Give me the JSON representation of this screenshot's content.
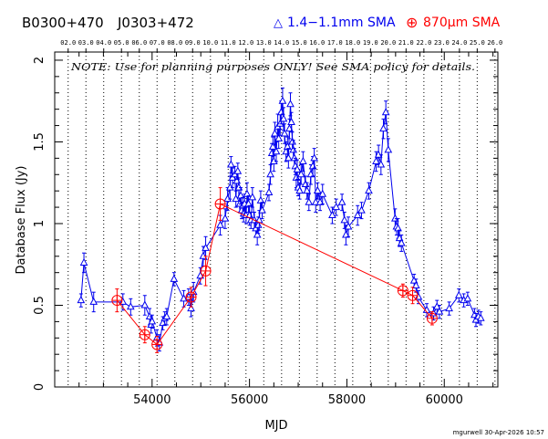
{
  "chart_data": {
    "type": "scatter",
    "title_left": "B0300+470",
    "title_mid": "J0303+472",
    "xlabel": "MJD",
    "ylabel": "Database Flux (Jy)",
    "xlim": [
      52000,
      61100
    ],
    "ylim": [
      0,
      2.05
    ],
    "x_ticks": [
      54000,
      56000,
      58000,
      60000
    ],
    "y_ticks": [
      0,
      0.5,
      1,
      1.5,
      2
    ],
    "y_tick_labels": [
      "0",
      "0.5",
      "1",
      "1.5",
      "2"
    ],
    "top_axis_labels": [
      "02.0",
      "03.0",
      "04.0",
      "05.0",
      "06.0",
      "07.0",
      "08.0",
      "09.0",
      "10.0",
      "11.0",
      "12.0",
      "13.0",
      "14.0",
      "15.0",
      "16.0",
      "17.0",
      "18.0",
      "19.0",
      "20.0",
      "21.0",
      "22.0",
      "23.0",
      "24.0",
      "25.0",
      "26.0"
    ],
    "year_ticks_mjd": [
      52276,
      52641,
      53006,
      53371,
      53737,
      54102,
      54467,
      54832,
      55198,
      55563,
      55928,
      56293,
      56659,
      57024,
      57389,
      57754,
      58120,
      58485,
      58850,
      59215,
      59581,
      59946,
      60311,
      60676,
      61041
    ],
    "note": "NOTE: Use for planning purposes ONLY! See SMA policy for details.",
    "footer": "mgurwell 30-Apr-2026 10:57",
    "grid": "vertical dotted lines at each year",
    "legend": "top",
    "series": [
      {
        "name": "1.4−1.1mm SMA",
        "marker_symbol": "△",
        "color": "#0000ee",
        "marker": "triangle",
        "points": [
          [
            52540,
            0.53,
            0.04
          ],
          [
            52600,
            0.76,
            0.06
          ],
          [
            52800,
            0.52,
            0.06
          ],
          [
            53400,
            0.52,
            0.05
          ],
          [
            53560,
            0.49,
            0.05
          ],
          [
            53850,
            0.5,
            0.06
          ],
          [
            53950,
            0.43,
            0.05
          ],
          [
            53980,
            0.38,
            0.05
          ],
          [
            54000,
            0.4,
            0.04
          ],
          [
            54100,
            0.3,
            0.05
          ],
          [
            54150,
            0.27,
            0.05
          ],
          [
            54220,
            0.39,
            0.04
          ],
          [
            54260,
            0.42,
            0.04
          ],
          [
            54300,
            0.43,
            0.05
          ],
          [
            54450,
            0.66,
            0.04
          ],
          [
            54650,
            0.54,
            0.05
          ],
          [
            54750,
            0.55,
            0.05
          ],
          [
            54800,
            0.48,
            0.05
          ],
          [
            54850,
            0.58,
            0.06
          ],
          [
            54990,
            0.68,
            0.05
          ],
          [
            55050,
            0.8,
            0.06
          ],
          [
            55100,
            0.85,
            0.07
          ],
          [
            55400,
            0.99,
            0.06
          ],
          [
            55500,
            1.03,
            0.06
          ],
          [
            55550,
            1.15,
            0.07
          ],
          [
            55600,
            1.22,
            0.07
          ],
          [
            55620,
            1.36,
            0.05
          ],
          [
            55650,
            1.28,
            0.06
          ],
          [
            55700,
            1.3,
            0.05
          ],
          [
            55720,
            1.15,
            0.05
          ],
          [
            55740,
            1.26,
            0.05
          ],
          [
            55760,
            1.32,
            0.05
          ],
          [
            55780,
            1.22,
            0.06
          ],
          [
            55800,
            1.12,
            0.05
          ],
          [
            55820,
            1.17,
            0.05
          ],
          [
            55840,
            1.08,
            0.05
          ],
          [
            55860,
            1.11,
            0.05
          ],
          [
            55880,
            1.06,
            0.05
          ],
          [
            55900,
            1.12,
            0.06
          ],
          [
            55930,
            1.05,
            0.05
          ],
          [
            55950,
            1.18,
            0.07
          ],
          [
            55980,
            1.12,
            0.05
          ],
          [
            56000,
            1.05,
            0.06
          ],
          [
            56030,
            1.02,
            0.05
          ],
          [
            56060,
            1.16,
            0.06
          ],
          [
            56100,
            1.02,
            0.05
          ],
          [
            56130,
            0.97,
            0.05
          ],
          [
            56160,
            0.93,
            0.06
          ],
          [
            56180,
            0.99,
            0.05
          ],
          [
            56200,
            1.02,
            0.06
          ],
          [
            56230,
            1.14,
            0.06
          ],
          [
            56260,
            1.08,
            0.05
          ],
          [
            56400,
            1.19,
            0.05
          ],
          [
            56430,
            1.3,
            0.06
          ],
          [
            56460,
            1.43,
            0.06
          ],
          [
            56480,
            1.47,
            0.06
          ],
          [
            56500,
            1.38,
            0.06
          ],
          [
            56520,
            1.55,
            0.07
          ],
          [
            56550,
            1.44,
            0.06
          ],
          [
            56580,
            1.59,
            0.08
          ],
          [
            56600,
            1.52,
            0.06
          ],
          [
            56630,
            1.61,
            0.07
          ],
          [
            56650,
            1.68,
            0.07
          ],
          [
            56680,
            1.75,
            0.08
          ],
          [
            56700,
            1.64,
            0.07
          ],
          [
            56720,
            1.55,
            0.06
          ],
          [
            56750,
            1.44,
            0.06
          ],
          [
            56780,
            1.47,
            0.06
          ],
          [
            56800,
            1.4,
            0.06
          ],
          [
            56820,
            1.58,
            0.06
          ],
          [
            56840,
            1.73,
            0.07
          ],
          [
            56860,
            1.62,
            0.06
          ],
          [
            56880,
            1.5,
            0.06
          ],
          [
            56900,
            1.45,
            0.06
          ],
          [
            56920,
            1.4,
            0.06
          ],
          [
            56940,
            1.35,
            0.05
          ],
          [
            56960,
            1.28,
            0.06
          ],
          [
            56980,
            1.33,
            0.06
          ],
          [
            57000,
            1.22,
            0.05
          ],
          [
            57030,
            1.2,
            0.05
          ],
          [
            57060,
            1.3,
            0.06
          ],
          [
            57100,
            1.38,
            0.06
          ],
          [
            57150,
            1.24,
            0.05
          ],
          [
            57180,
            1.2,
            0.05
          ],
          [
            57220,
            1.13,
            0.05
          ],
          [
            57260,
            1.3,
            0.06
          ],
          [
            57300,
            1.35,
            0.06
          ],
          [
            57330,
            1.4,
            0.06
          ],
          [
            57360,
            1.13,
            0.06
          ],
          [
            57400,
            1.2,
            0.05
          ],
          [
            57450,
            1.13,
            0.05
          ],
          [
            57500,
            1.18,
            0.06
          ],
          [
            57700,
            1.05,
            0.05
          ],
          [
            57780,
            1.1,
            0.05
          ],
          [
            57900,
            1.13,
            0.05
          ],
          [
            57950,
            1.02,
            0.05
          ],
          [
            57980,
            0.93,
            0.06
          ],
          [
            58030,
            0.98,
            0.06
          ],
          [
            58220,
            1.05,
            0.06
          ],
          [
            58300,
            1.08,
            0.05
          ],
          [
            58450,
            1.2,
            0.05
          ],
          [
            58600,
            1.38,
            0.06
          ],
          [
            58650,
            1.42,
            0.06
          ],
          [
            58700,
            1.36,
            0.06
          ],
          [
            58750,
            1.58,
            0.06
          ],
          [
            58800,
            1.68,
            0.07
          ],
          [
            58850,
            1.45,
            0.07
          ],
          [
            58990,
            1.03,
            0.06
          ],
          [
            59020,
            0.98,
            0.05
          ],
          [
            59050,
            0.97,
            0.06
          ],
          [
            59080,
            0.91,
            0.05
          ],
          [
            59120,
            0.88,
            0.05
          ],
          [
            59380,
            0.65,
            0.04
          ],
          [
            59420,
            0.62,
            0.04
          ],
          [
            59470,
            0.55,
            0.04
          ],
          [
            59640,
            0.47,
            0.04
          ],
          [
            59780,
            0.45,
            0.04
          ],
          [
            59850,
            0.49,
            0.04
          ],
          [
            59900,
            0.46,
            0.04
          ],
          [
            60100,
            0.48,
            0.04
          ],
          [
            60300,
            0.56,
            0.04
          ],
          [
            60400,
            0.53,
            0.04
          ],
          [
            60480,
            0.54,
            0.04
          ],
          [
            60620,
            0.44,
            0.04
          ],
          [
            60650,
            0.41,
            0.04
          ],
          [
            60700,
            0.43,
            0.04
          ],
          [
            60750,
            0.42,
            0.04
          ]
        ]
      },
      {
        "name": "870μm SMA",
        "marker_symbol": "⊕",
        "color": "#ff0000",
        "marker": "circle-cross",
        "points": [
          [
            53280,
            0.53,
            0.07
          ],
          [
            53850,
            0.32,
            0.05
          ],
          [
            54100,
            0.26,
            0.05
          ],
          [
            54800,
            0.55,
            0.06
          ],
          [
            55100,
            0.71,
            0.09
          ],
          [
            55400,
            1.12,
            0.1
          ],
          [
            59150,
            0.59,
            0.04
          ],
          [
            59350,
            0.56,
            0.05
          ],
          [
            59750,
            0.42,
            0.04
          ]
        ]
      }
    ]
  }
}
